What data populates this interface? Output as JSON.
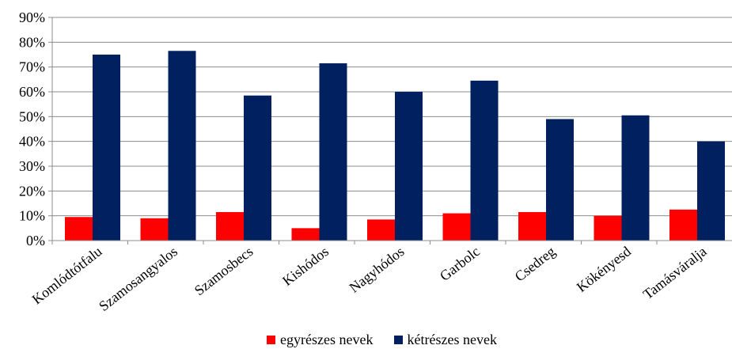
{
  "chart_data": {
    "type": "bar",
    "categories": [
      "Komlódtótfalu",
      "Szamosangyalos",
      "Szamosbecs",
      "Kishódos",
      "Nagyhódos",
      "Garbolc",
      "Csedreg",
      "Kökényesd",
      "Tamásváralja"
    ],
    "series": [
      {
        "name": "egyrészes nevek",
        "color": "#ff0000",
        "values": [
          9.5,
          9,
          11.5,
          5,
          8.5,
          11,
          11.5,
          10,
          12.5
        ]
      },
      {
        "name": "kétrészes nevek",
        "color": "#002060",
        "values": [
          75,
          76.5,
          58.5,
          71.5,
          60,
          64.5,
          49,
          50.5,
          40
        ]
      }
    ],
    "ylim": [
      0,
      90
    ],
    "yticks": [
      0,
      10,
      20,
      30,
      40,
      50,
      60,
      70,
      80,
      90
    ],
    "ytick_labels": [
      "0%",
      "10%",
      "20%",
      "30%",
      "40%",
      "50%",
      "60%",
      "70%",
      "80%",
      "90%"
    ],
    "grid": true,
    "legend_position": "bottom",
    "title": "",
    "xlabel": "",
    "ylabel": ""
  }
}
